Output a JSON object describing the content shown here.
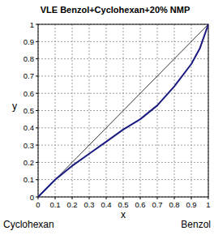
{
  "chart_data": {
    "type": "line",
    "title": "VLE Benzol+Cyclohexan+20% NMP",
    "x_label": "x",
    "y_label": "y",
    "annotations": [
      {
        "text": "Cyclohexan"
      },
      {
        "text": "Benzol"
      }
    ],
    "xlim": [
      0,
      1
    ],
    "ylim": [
      0,
      1
    ],
    "xticks": [
      0,
      0.1,
      0.2,
      0.3,
      0.4,
      0.5,
      0.6,
      0.7,
      0.8,
      0.9,
      1
    ],
    "yticks": [
      0,
      0.1,
      0.2,
      0.3,
      0.4,
      0.5,
      0.6,
      0.7,
      0.8,
      0.9,
      1
    ],
    "grid": true,
    "series": [
      {
        "color": "#000000",
        "line_style": "solid",
        "x": [
          0,
          1
        ],
        "values": [
          0,
          1
        ]
      },
      {
        "color": "#1a1a80",
        "line_style": "solid",
        "x": [
          0,
          0.1,
          0.2,
          0.3,
          0.4,
          0.5,
          0.6,
          0.7,
          0.8,
          0.9,
          0.95,
          1
        ],
        "values": [
          0,
          0.1,
          0.18,
          0.25,
          0.32,
          0.39,
          0.45,
          0.53,
          0.64,
          0.77,
          0.86,
          1
        ]
      }
    ]
  }
}
